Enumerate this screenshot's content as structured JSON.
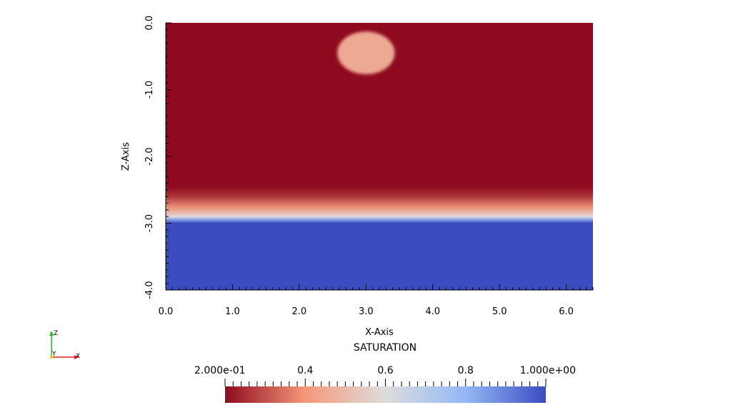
{
  "chart_data": {
    "type": "heatmap",
    "title": "",
    "xlabel": "X-Axis",
    "ylabel": "Z-Axis",
    "xlim": [
      0,
      6.4
    ],
    "ylim": [
      -4.0,
      0.0
    ],
    "x_ticks": [
      {
        "value": 0,
        "label": "0.0"
      },
      {
        "value": 1,
        "label": "1.0"
      },
      {
        "value": 2,
        "label": "2.0"
      },
      {
        "value": 3,
        "label": "3.0"
      },
      {
        "value": 4,
        "label": "4.0"
      },
      {
        "value": 5,
        "label": "5.0"
      },
      {
        "value": 6,
        "label": "6.0"
      }
    ],
    "y_ticks": [
      {
        "value": 0,
        "label": "0.0"
      },
      {
        "value": -1,
        "label": "-1.0"
      },
      {
        "value": -2,
        "label": "-2.0"
      },
      {
        "value": -3,
        "label": "-3.0"
      },
      {
        "value": -4,
        "label": "-4.0"
      }
    ],
    "field": {
      "name": "SATURATION",
      "profile_z": [
        {
          "z": 0.0,
          "value": 0.2
        },
        {
          "z": -2.45,
          "value": 0.2
        },
        {
          "z": -2.6,
          "value": 0.26
        },
        {
          "z": -2.75,
          "value": 0.38
        },
        {
          "z": -2.85,
          "value": 0.5
        },
        {
          "z": -2.9,
          "value": 0.6
        },
        {
          "z": -2.95,
          "value": 0.85
        },
        {
          "z": -3.0,
          "value": 1.0
        },
        {
          "z": -4.0,
          "value": 1.0
        }
      ],
      "blob": {
        "x_center": 3.0,
        "z_center": -0.45,
        "x_halfwidth": 0.43,
        "z_halfheight": 0.32,
        "value": 0.45
      }
    },
    "colorbar": {
      "title": "SATURATION",
      "range": [
        0.2,
        1.0
      ],
      "tick_labels": [
        {
          "value": 0.2,
          "label": "2.000e-01"
        },
        {
          "value": 0.4,
          "label": "0.4"
        },
        {
          "value": 0.6,
          "label": "0.6"
        },
        {
          "value": 0.8,
          "label": "0.8"
        },
        {
          "value": 1.0,
          "label": "1.000e+00"
        }
      ],
      "colors": [
        "#8f0a1f",
        "#f4987a",
        "#dddddd",
        "#93b8f5",
        "#3b4cc0"
      ]
    },
    "orientation_axes": {
      "z_label": "Z",
      "y_label": "Y",
      "x_label": "X",
      "z_color": "#22bb22",
      "y_color": "#e6d000",
      "x_color": "#dd2222"
    }
  }
}
